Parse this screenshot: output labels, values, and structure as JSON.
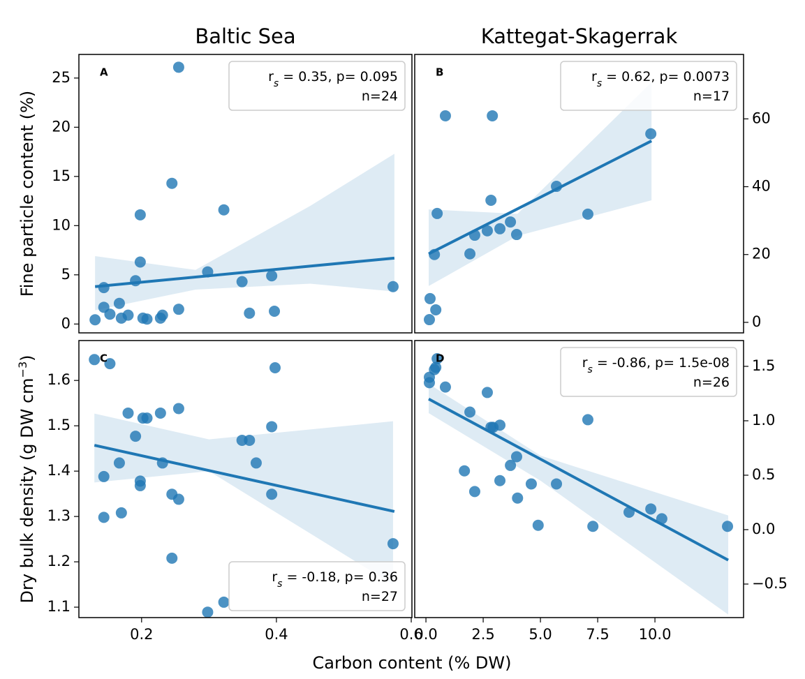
{
  "figure": {
    "xlabel": "Carbon content (% DW)"
  },
  "chart_data": [
    {
      "type": "scatter",
      "title": "Baltic Sea",
      "panel_label": "A",
      "color": "#1f77b4",
      "ylabel": {
        "text": "Fine particle content (%)"
      },
      "yaxis": "left",
      "xlim": [
        0.107,
        0.601
      ],
      "ylim": [
        -0.9,
        27.4
      ],
      "yticks": [
        0,
        5,
        10,
        15,
        20,
        25
      ],
      "x": [
        0.131,
        0.144,
        0.144,
        0.153,
        0.167,
        0.17,
        0.18,
        0.191,
        0.198,
        0.198,
        0.202,
        0.208,
        0.228,
        0.231,
        0.255,
        0.245,
        0.255,
        0.298,
        0.322,
        0.349,
        0.36,
        0.393,
        0.397,
        0.573
      ],
      "y": [
        0.43,
        3.7,
        1.7,
        1.0,
        2.1,
        0.6,
        0.9,
        4.4,
        11.1,
        6.3,
        0.6,
        0.5,
        0.6,
        0.9,
        26.1,
        14.3,
        1.5,
        5.3,
        11.6,
        4.3,
        1.1,
        4.9,
        1.3,
        3.8
      ],
      "line": {
        "x": [
          0.131,
          0.575
        ],
        "y": [
          3.8,
          6.7
        ]
      },
      "band": {
        "x": [
          0.131,
          0.28,
          0.45,
          0.575
        ],
        "lower": [
          1.4,
          3.5,
          4.1,
          3.3
        ],
        "upper": [
          6.9,
          5.5,
          12.0,
          17.3
        ]
      },
      "annotation": {
        "corner": "upper right",
        "r": "r",
        "sub": "s",
        "text": " =  0.35, p= 0.095",
        "n": "n=24"
      }
    },
    {
      "type": "scatter",
      "title": "Kattegat-Skagerrak",
      "panel_label": "B",
      "color": "#1f77b4",
      "yaxis": "right",
      "xlim": [
        -0.49,
        13.87
      ],
      "ylim": [
        -3.1,
        79.0
      ],
      "yticks": [
        0,
        20,
        40,
        60
      ],
      "x": [
        0.18,
        0.43,
        0.15,
        0.37,
        0.49,
        0.85,
        1.92,
        2.13,
        2.68,
        2.84,
        2.9,
        3.23,
        3.69,
        3.96,
        5.7,
        7.07,
        9.82
      ],
      "y": [
        7.0,
        3.7,
        0.8,
        20.0,
        32.1,
        60.9,
        20.2,
        25.7,
        27.0,
        36.0,
        60.9,
        27.6,
        29.6,
        25.9,
        40.1,
        31.9,
        55.6
      ],
      "line": {
        "x": [
          0.12,
          9.85
        ],
        "y": [
          20.2,
          53.5
        ]
      },
      "band": {
        "x": [
          0.12,
          4.0,
          9.85
        ],
        "lower": [
          10.7,
          25.5,
          36.0
        ],
        "upper": [
          33.3,
          32.0,
          70.8
        ]
      },
      "annotation": {
        "corner": "upper right",
        "r": "r",
        "sub": "s",
        "text": " =  0.62, p= 0.0073",
        "n": "n=17"
      }
    },
    {
      "type": "scatter",
      "panel_label": "C",
      "color": "#1f77b4",
      "ylabel": {
        "text": "Dry bulk density (g DW cm",
        "sup": "−3",
        "end": ")"
      },
      "yaxis": "left",
      "xlim": [
        0.107,
        0.601
      ],
      "ylim": [
        1.077,
        1.688
      ],
      "xticks": [
        0.2,
        0.4,
        0.6
      ],
      "yticks": [
        1.1,
        1.2,
        1.3,
        1.4,
        1.5,
        1.6
      ],
      "x": [
        0.13,
        0.153,
        0.144,
        0.144,
        0.167,
        0.17,
        0.18,
        0.191,
        0.198,
        0.198,
        0.202,
        0.208,
        0.228,
        0.231,
        0.245,
        0.245,
        0.255,
        0.255,
        0.298,
        0.322,
        0.349,
        0.36,
        0.37,
        0.393,
        0.393,
        0.398,
        0.573
      ],
      "y": [
        1.646,
        1.637,
        1.388,
        1.298,
        1.418,
        1.308,
        1.528,
        1.477,
        1.378,
        1.368,
        1.517,
        1.517,
        1.528,
        1.418,
        1.349,
        1.208,
        1.338,
        1.538,
        1.089,
        1.111,
        1.468,
        1.468,
        1.418,
        1.498,
        1.349,
        1.628,
        1.24
      ],
      "line": {
        "x": [
          0.13,
          0.575
        ],
        "y": [
          1.457,
          1.311
        ]
      },
      "band": {
        "x": [
          0.13,
          0.3,
          0.573
        ],
        "lower": [
          1.375,
          1.4,
          1.15
        ],
        "upper": [
          1.527,
          1.47,
          1.51
        ]
      },
      "annotation": {
        "corner": "lower right",
        "r": "r",
        "sub": "s",
        "text": " =  -0.18, p= 0.36",
        "n": "n=27"
      }
    },
    {
      "type": "scatter",
      "panel_label": "D",
      "color": "#1f77b4",
      "yaxis": "right",
      "xlim": [
        -0.49,
        13.87
      ],
      "ylim": [
        -0.808,
        1.737
      ],
      "xticks": [
        {
          "value": 0,
          "label": "0.0"
        },
        2.5,
        {
          "value": 5,
          "label": "5.0"
        },
        7.5,
        {
          "value": 10,
          "label": "10.0"
        }
      ],
      "yticks": [
        {
          "value": -0.5,
          "label": "−0.5"
        },
        {
          "value": 0,
          "label": "0.0"
        },
        0.5,
        {
          "value": 1,
          "label": "1.0"
        },
        1.5
      ],
      "x": [
        0.15,
        0.15,
        0.37,
        0.43,
        0.49,
        0.85,
        1.92,
        1.68,
        2.13,
        2.68,
        2.84,
        2.93,
        3.23,
        3.23,
        3.69,
        3.96,
        4.0,
        4.6,
        4.9,
        5.7,
        7.07,
        7.29,
        8.87,
        9.82,
        10.3,
        13.17
      ],
      "y": [
        1.35,
        1.4,
        1.47,
        1.49,
        1.57,
        1.31,
        1.08,
        0.54,
        0.35,
        1.26,
        0.94,
        0.94,
        0.96,
        0.45,
        0.59,
        0.67,
        0.29,
        0.42,
        0.04,
        0.42,
        1.01,
        0.03,
        0.16,
        0.19,
        0.1,
        0.03
      ],
      "line": {
        "x": [
          0.12,
          13.2
        ],
        "y": [
          1.2,
          -0.28
        ]
      },
      "band": {
        "x": [
          0.12,
          5.0,
          13.2
        ],
        "lower": [
          1.07,
          0.45,
          -0.78
        ],
        "upper": [
          1.34,
          0.68,
          0.13
        ]
      },
      "annotation": {
        "corner": "upper right",
        "r": "r",
        "sub": "s",
        "text": " =  -0.86, p= 1.5e-08",
        "n": "n=26"
      }
    }
  ]
}
